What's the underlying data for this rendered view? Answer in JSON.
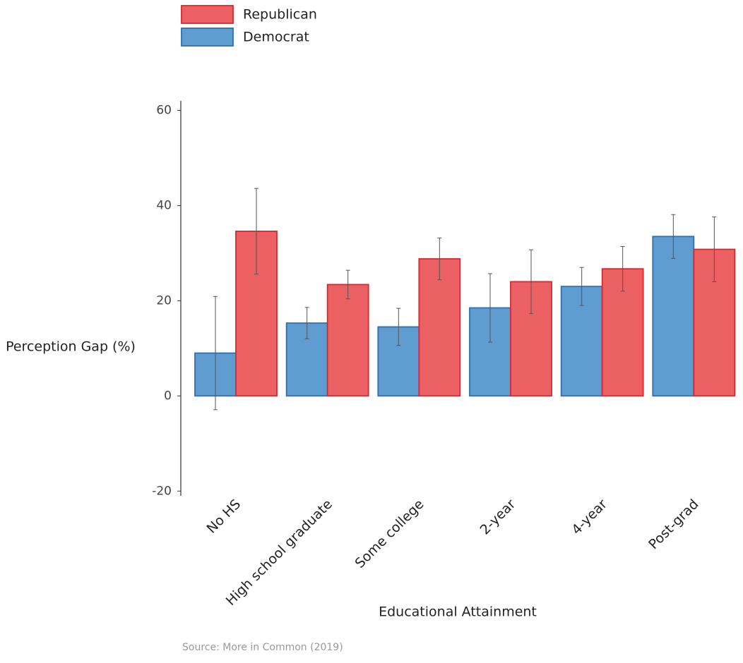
{
  "chart_data": {
    "type": "bar",
    "xlabel": "Educational Attainment",
    "ylabel": "Perception Gap (%)",
    "source": "Source: More in Common (2019)",
    "categories": [
      "No HS",
      "High school graduate",
      "Some college",
      "2-year",
      "4-year",
      "Post-grad"
    ],
    "series": [
      {
        "name": "Democrat",
        "color": "#5f9ccf",
        "edge": "#2f6fb5",
        "values": [
          9.0,
          15.3,
          14.5,
          18.5,
          23.0,
          33.5
        ],
        "errors": [
          11.9,
          3.3,
          3.9,
          7.2,
          4.0,
          4.6
        ]
      },
      {
        "name": "Republican",
        "color": "#eb6063",
        "edge": "#d9282e",
        "values": [
          34.6,
          23.4,
          28.8,
          24.0,
          26.7,
          30.8
        ],
        "errors": [
          9.0,
          3.0,
          4.4,
          6.7,
          4.7,
          6.8
        ]
      }
    ],
    "ylim": [
      -21,
      62
    ],
    "yticks": [
      -20,
      0,
      20,
      40,
      60
    ],
    "legend": "top-left"
  }
}
